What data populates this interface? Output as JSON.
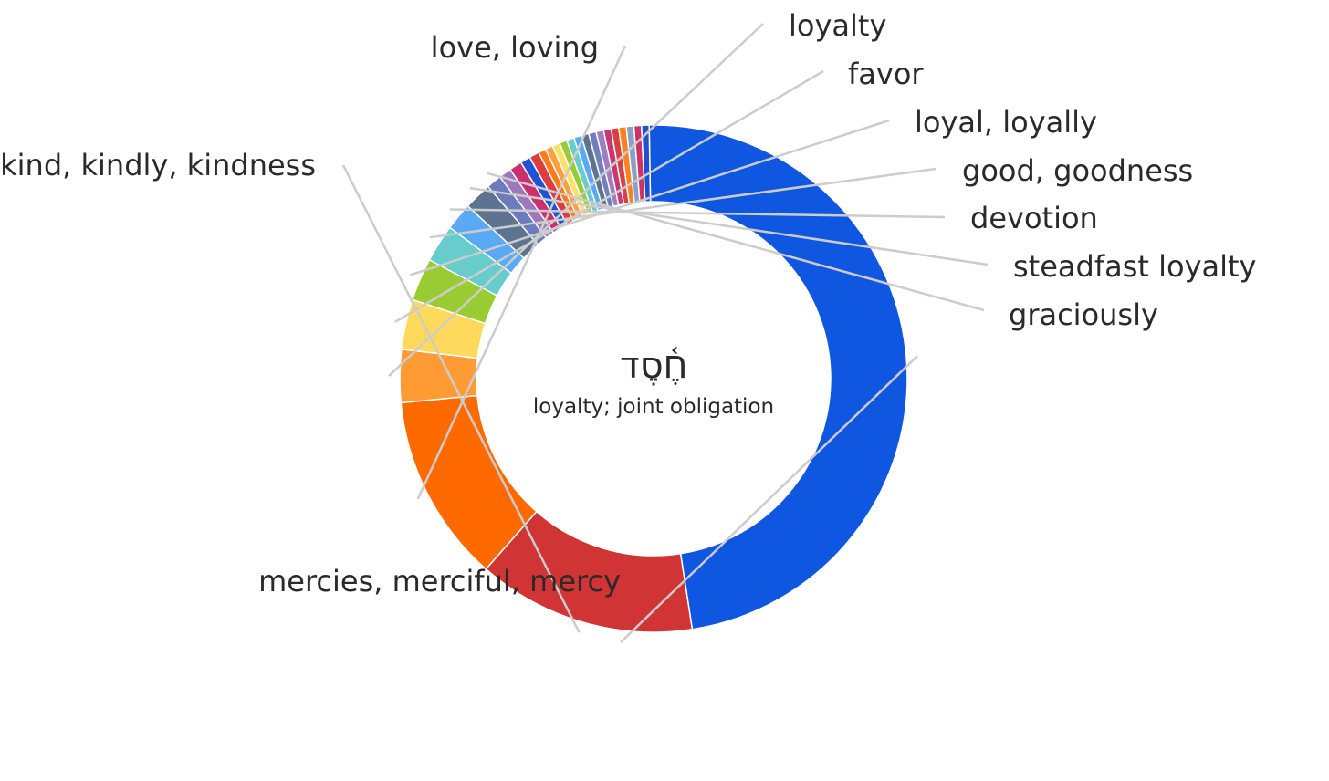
{
  "chart_data": {
    "type": "pie",
    "variant": "donut",
    "center_word": "חֶ֫סֶד",
    "center_gloss": "loyalty; joint obligation",
    "categories": [
      "mercies, merciful, mercy",
      "kind, kindly, kindness",
      "love, loving",
      "loyalty",
      "favor",
      "loyal, loyally",
      "good, goodness",
      "devotion",
      "steadfast loyalty",
      "graciously",
      "",
      "",
      "",
      "",
      "",
      "",
      "",
      "",
      "",
      "",
      "",
      "",
      "",
      "",
      "",
      "",
      "",
      "",
      ""
    ],
    "values": [
      149.5,
      43.5,
      37.5,
      10.5,
      10,
      8.5,
      7.5,
      5.5,
      5.5,
      3,
      2.5,
      2.5,
      2,
      2,
      1.5,
      1.5,
      1.5,
      1.5,
      1.5,
      1.5,
      1.5,
      1.5,
      1.5,
      1.5,
      1.5,
      1.5,
      1.5,
      1.5,
      1.5
    ],
    "colors": [
      "#0f56e0",
      "#d13434",
      "#ff6a00",
      "#ff9b34",
      "#ffd95c",
      "#99cc33",
      "#66cccc",
      "#5aa9f5",
      "#5e738f",
      "#6b7bbd",
      "#9e77bd",
      "#cc2f6f",
      "#1f53d6",
      "#e03c3c",
      "#ff7a1a",
      "#ffa040",
      "#ffe066",
      "#99cc33",
      "#66cccc",
      "#5aa9f5",
      "#5e738f",
      "#7080bf",
      "#a07cc0",
      "#c93870",
      "#d94040",
      "#ff8020",
      "#8aa0c8",
      "#cc3366",
      "#2050d0"
    ],
    "legend": "none"
  }
}
